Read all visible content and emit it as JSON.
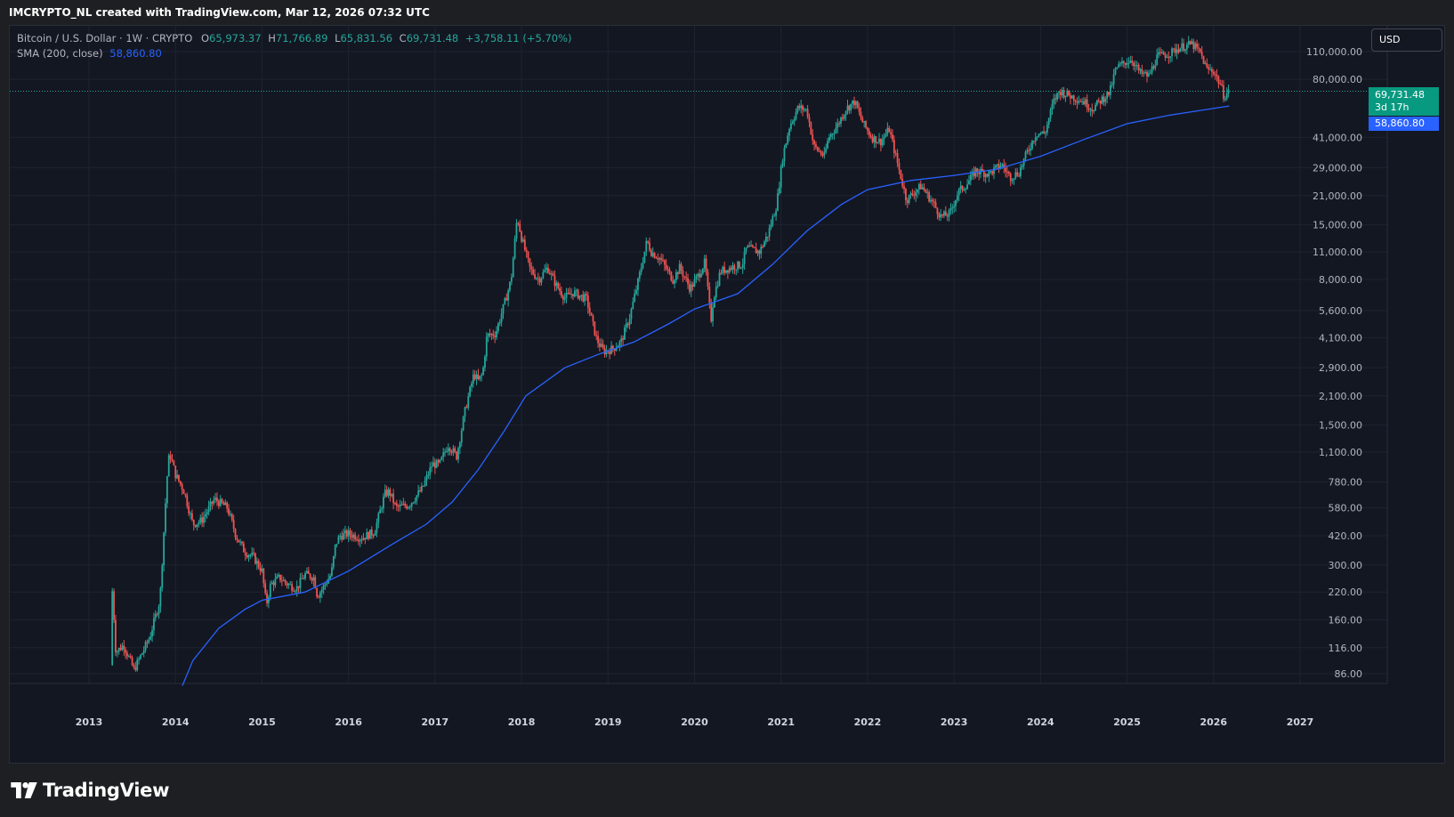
{
  "header": {
    "attribution": "IMCRYPTO_NL created with TradingView.com, Mar 12, 2026 07:32 UTC"
  },
  "legend": {
    "symbol": "Bitcoin / U.S. Dollar · 1W · CRYPTO",
    "open_label": "O",
    "open": "65,973.37",
    "high_label": "H",
    "high": "71,766.89",
    "low_label": "L",
    "low": "65,831.56",
    "close_label": "C",
    "close": "69,731.48",
    "change": "+3,758.11 (+5.70%)",
    "sma_label": "SMA (200, close)",
    "sma_value": "58,860.80"
  },
  "toolbar": {
    "currency": "USD"
  },
  "price_tags": {
    "last": "69,731.48",
    "countdown": "3d 17h",
    "sma": "58,860.80"
  },
  "footer": {
    "brand": "TradingView"
  },
  "colors": {
    "background": "#131722",
    "up": "#26a69a",
    "down": "#ef5350",
    "sma": "#2962ff",
    "grid": "#1f2330",
    "text": "#b2b5be"
  },
  "chart_data": {
    "type": "candlestick",
    "title": "Bitcoin / U.S. Dollar · 1W · CRYPTO",
    "y_scale": "log",
    "ylim": [
      70,
      140000
    ],
    "xlim": [
      2013.0,
      2027.2
    ],
    "y_ticks": [
      {
        "v": 110000,
        "label": "110,000.00"
      },
      {
        "v": 80000,
        "label": "80,000.00"
      },
      {
        "v": 41000,
        "label": "41,000.00"
      },
      {
        "v": 29000,
        "label": "29,000.00"
      },
      {
        "v": 21000,
        "label": "21,000.00"
      },
      {
        "v": 15000,
        "label": "15,000.00"
      },
      {
        "v": 11000,
        "label": "11,000.00"
      },
      {
        "v": 8000,
        "label": "8,000.00"
      },
      {
        "v": 5600,
        "label": "5,600.00"
      },
      {
        "v": 4100,
        "label": "4,100.00"
      },
      {
        "v": 2900,
        "label": "2,900.00"
      },
      {
        "v": 2100,
        "label": "2,100.00"
      },
      {
        "v": 1500,
        "label": "1,500.00"
      },
      {
        "v": 1100,
        "label": "1,100.00"
      },
      {
        "v": 780,
        "label": "780.00"
      },
      {
        "v": 580,
        "label": "580.00"
      },
      {
        "v": 420,
        "label": "420.00"
      },
      {
        "v": 300,
        "label": "300.00"
      },
      {
        "v": 220,
        "label": "220.00"
      },
      {
        "v": 160,
        "label": "160.00"
      },
      {
        "v": 116,
        "label": "116.00"
      },
      {
        "v": 86,
        "label": "86.00"
      }
    ],
    "x_ticks": [
      {
        "v": 2013,
        "label": "2013"
      },
      {
        "v": 2014,
        "label": "2014"
      },
      {
        "v": 2015,
        "label": "2015"
      },
      {
        "v": 2016,
        "label": "2016"
      },
      {
        "v": 2017,
        "label": "2017"
      },
      {
        "v": 2018,
        "label": "2018"
      },
      {
        "v": 2019,
        "label": "2019"
      },
      {
        "v": 2020,
        "label": "2020"
      },
      {
        "v": 2021,
        "label": "2021"
      },
      {
        "v": 2022,
        "label": "2022"
      },
      {
        "v": 2023,
        "label": "2023"
      },
      {
        "v": 2024,
        "label": "2024"
      },
      {
        "v": 2025,
        "label": "2025"
      },
      {
        "v": 2026,
        "label": "2026"
      },
      {
        "v": 2027,
        "label": "2027"
      }
    ],
    "price_path": [
      [
        2013.25,
        95
      ],
      [
        2013.27,
        230
      ],
      [
        2013.31,
        110
      ],
      [
        2013.4,
        120
      ],
      [
        2013.52,
        90
      ],
      [
        2013.7,
        130
      ],
      [
        2013.82,
        200
      ],
      [
        2013.9,
        800
      ],
      [
        2013.93,
        1100
      ],
      [
        2014.0,
        850
      ],
      [
        2014.1,
        700
      ],
      [
        2014.2,
        480
      ],
      [
        2014.3,
        500
      ],
      [
        2014.45,
        640
      ],
      [
        2014.6,
        580
      ],
      [
        2014.7,
        420
      ],
      [
        2014.8,
        350
      ],
      [
        2014.9,
        330
      ],
      [
        2015.0,
        280
      ],
      [
        2015.05,
        190
      ],
      [
        2015.1,
        240
      ],
      [
        2015.2,
        260
      ],
      [
        2015.3,
        240
      ],
      [
        2015.4,
        230
      ],
      [
        2015.5,
        270
      ],
      [
        2015.6,
        260
      ],
      [
        2015.64,
        210
      ],
      [
        2015.7,
        230
      ],
      [
        2015.8,
        270
      ],
      [
        2015.85,
        380
      ],
      [
        2015.9,
        420
      ],
      [
        2016.0,
        430
      ],
      [
        2016.15,
        410
      ],
      [
        2016.3,
        440
      ],
      [
        2016.42,
        680
      ],
      [
        2016.47,
        700
      ],
      [
        2016.55,
        580
      ],
      [
        2016.7,
        600
      ],
      [
        2016.85,
        720
      ],
      [
        2016.97,
        960
      ],
      [
        2017.05,
        950
      ],
      [
        2017.15,
        1200
      ],
      [
        2017.25,
        1050
      ],
      [
        2017.35,
        1800
      ],
      [
        2017.45,
        2700
      ],
      [
        2017.5,
        2500
      ],
      [
        2017.55,
        2700
      ],
      [
        2017.6,
        4200
      ],
      [
        2017.7,
        4300
      ],
      [
        2017.8,
        6000
      ],
      [
        2017.88,
        8000
      ],
      [
        2017.95,
        16500
      ],
      [
        2018.0,
        13000
      ],
      [
        2018.1,
        9000
      ],
      [
        2018.2,
        8000
      ],
      [
        2018.3,
        9200
      ],
      [
        2018.4,
        7500
      ],
      [
        2018.5,
        6500
      ],
      [
        2018.6,
        6900
      ],
      [
        2018.75,
        6400
      ],
      [
        2018.87,
        4000
      ],
      [
        2018.95,
        3500
      ],
      [
        2019.05,
        3600
      ],
      [
        2019.15,
        3900
      ],
      [
        2019.25,
        5200
      ],
      [
        2019.35,
        7900
      ],
      [
        2019.45,
        12500
      ],
      [
        2019.5,
        11000
      ],
      [
        2019.6,
        10200
      ],
      [
        2019.75,
        8000
      ],
      [
        2019.83,
        9200
      ],
      [
        2019.95,
        7200
      ],
      [
        2020.05,
        8500
      ],
      [
        2020.12,
        9800
      ],
      [
        2020.19,
        5000
      ],
      [
        2020.22,
        6500
      ],
      [
        2020.3,
        8800
      ],
      [
        2020.45,
        9300
      ],
      [
        2020.55,
        9500
      ],
      [
        2020.6,
        11500
      ],
      [
        2020.75,
        11000
      ],
      [
        2020.85,
        13500
      ],
      [
        2020.95,
        19000
      ],
      [
        2021.02,
        33000
      ],
      [
        2021.1,
        47000
      ],
      [
        2021.2,
        58000
      ],
      [
        2021.3,
        56000
      ],
      [
        2021.38,
        37000
      ],
      [
        2021.5,
        33000
      ],
      [
        2021.55,
        41000
      ],
      [
        2021.65,
        47000
      ],
      [
        2021.75,
        57000
      ],
      [
        2021.85,
        62000
      ],
      [
        2021.95,
        48000
      ],
      [
        2022.05,
        41000
      ],
      [
        2022.15,
        39000
      ],
      [
        2022.25,
        45000
      ],
      [
        2022.35,
        30000
      ],
      [
        2022.45,
        20000
      ],
      [
        2022.55,
        22000
      ],
      [
        2022.62,
        23500
      ],
      [
        2022.75,
        19500
      ],
      [
        2022.85,
        16500
      ],
      [
        2022.95,
        17000
      ],
      [
        2023.05,
        22000
      ],
      [
        2023.15,
        24000
      ],
      [
        2023.25,
        28000
      ],
      [
        2023.4,
        27000
      ],
      [
        2023.55,
        30000
      ],
      [
        2023.65,
        26000
      ],
      [
        2023.75,
        27500
      ],
      [
        2023.85,
        35000
      ],
      [
        2023.95,
        43000
      ],
      [
        2024.05,
        43000
      ],
      [
        2024.15,
        62000
      ],
      [
        2024.22,
        70000
      ],
      [
        2024.35,
        66000
      ],
      [
        2024.5,
        62000
      ],
      [
        2024.6,
        57000
      ],
      [
        2024.7,
        63000
      ],
      [
        2024.8,
        69000
      ],
      [
        2024.87,
        90000
      ],
      [
        2024.95,
        96000
      ],
      [
        2025.05,
        101000
      ],
      [
        2025.15,
        86000
      ],
      [
        2025.25,
        83000
      ],
      [
        2025.35,
        104000
      ],
      [
        2025.5,
        108000
      ],
      [
        2025.6,
        115000
      ],
      [
        2025.75,
        120000
      ],
      [
        2025.85,
        108000
      ],
      [
        2025.92,
        90000
      ],
      [
        2026.0,
        88000
      ],
      [
        2026.08,
        75000
      ],
      [
        2026.12,
        66000
      ],
      [
        2026.18,
        69731
      ]
    ],
    "sma_200": [
      [
        2014.08,
        75
      ],
      [
        2014.2,
        100
      ],
      [
        2014.5,
        145
      ],
      [
        2014.8,
        180
      ],
      [
        2015.0,
        200
      ],
      [
        2015.5,
        220
      ],
      [
        2016.0,
        280
      ],
      [
        2016.5,
        380
      ],
      [
        2016.9,
        480
      ],
      [
        2017.2,
        620
      ],
      [
        2017.5,
        900
      ],
      [
        2017.8,
        1400
      ],
      [
        2018.05,
        2100
      ],
      [
        2018.5,
        2900
      ],
      [
        2018.9,
        3400
      ],
      [
        2019.3,
        3900
      ],
      [
        2019.7,
        4800
      ],
      [
        2020.0,
        5700
      ],
      [
        2020.5,
        6800
      ],
      [
        2020.9,
        9500
      ],
      [
        2021.3,
        14000
      ],
      [
        2021.7,
        19000
      ],
      [
        2022.0,
        22500
      ],
      [
        2022.5,
        25000
      ],
      [
        2023.0,
        26500
      ],
      [
        2023.5,
        28500
      ],
      [
        2024.0,
        33000
      ],
      [
        2024.5,
        40000
      ],
      [
        2025.0,
        48000
      ],
      [
        2025.5,
        53000
      ],
      [
        2026.18,
        58860.8
      ]
    ],
    "last_price": 69731.48,
    "sma_last": 58860.8
  }
}
